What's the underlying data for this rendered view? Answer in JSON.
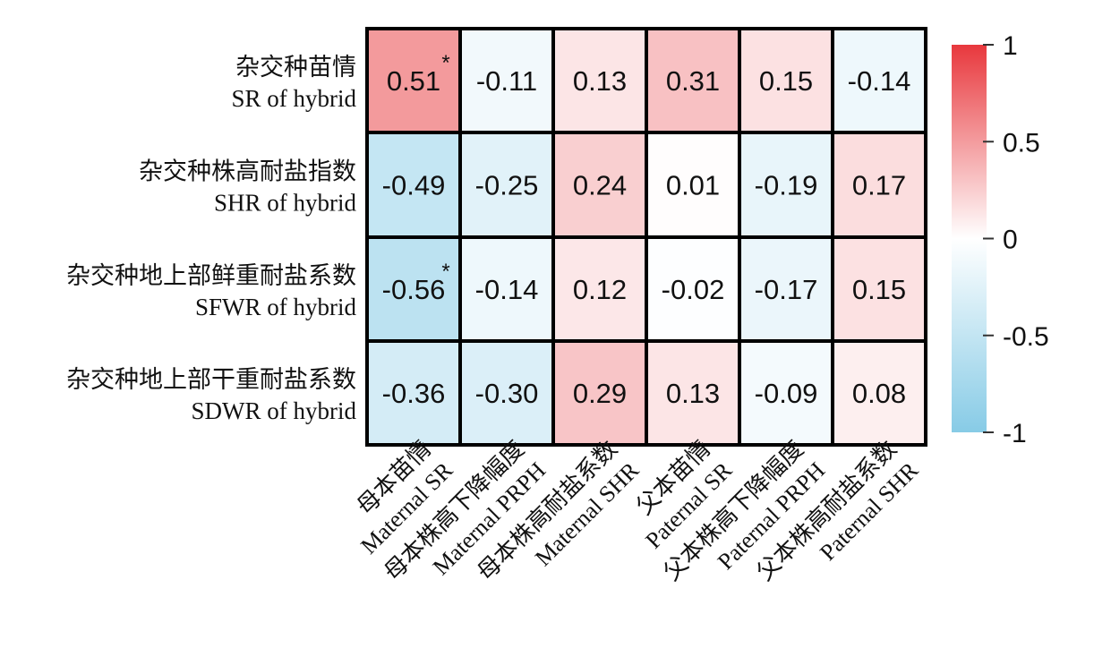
{
  "chart_data": {
    "type": "heatmap",
    "rows": [
      {
        "zh": "杂交种苗情",
        "en": "SR of hybrid"
      },
      {
        "zh": "杂交种株高耐盐指数",
        "en": "SHR of hybrid"
      },
      {
        "zh": "杂交种地上部鲜重耐盐系数",
        "en": "SFWR of hybrid"
      },
      {
        "zh": "杂交种地上部干重耐盐系数",
        "en": "SDWR of hybrid"
      }
    ],
    "columns": [
      {
        "zh": "母本苗情",
        "en": "Maternal SR"
      },
      {
        "zh": "母本株高下降幅度",
        "en": "Maternal PRPH"
      },
      {
        "zh": "母本株高耐盐系数",
        "en": "Maternal SHR"
      },
      {
        "zh": "父本苗情",
        "en": "Paternal SR"
      },
      {
        "zh": "父本株高下降幅度",
        "en": "Paternal PRPH"
      },
      {
        "zh": "父本株高耐盐系数",
        "en": "Paternal SHR"
      }
    ],
    "labels": [
      [
        "0.51",
        "-0.11",
        "0.13",
        "0.31",
        "0.15",
        "-0.14"
      ],
      [
        "-0.49",
        "-0.25",
        "0.24",
        "0.01",
        "-0.19",
        "0.17"
      ],
      [
        "-0.56",
        "-0.14",
        "0.12",
        "-0.02",
        "-0.17",
        "0.15"
      ],
      [
        "-0.36",
        "-0.30",
        "0.29",
        "0.13",
        "-0.09",
        "0.08"
      ]
    ],
    "values": [
      [
        0.51,
        -0.11,
        0.13,
        0.31,
        0.15,
        -0.14
      ],
      [
        -0.49,
        -0.25,
        0.24,
        0.01,
        -0.19,
        0.17
      ],
      [
        -0.56,
        -0.14,
        0.12,
        -0.02,
        -0.17,
        0.15
      ],
      [
        -0.36,
        -0.3,
        0.29,
        0.13,
        -0.09,
        0.08
      ]
    ],
    "significance": [
      [
        "*",
        "",
        "",
        "",
        "",
        ""
      ],
      [
        "",
        "",
        "",
        "",
        "",
        ""
      ],
      [
        "*",
        "",
        "",
        "",
        "",
        ""
      ],
      [
        "",
        "",
        "",
        "",
        "",
        ""
      ]
    ],
    "colorbar": {
      "range": [
        -1,
        1
      ],
      "ticks": [
        1,
        0.5,
        0,
        -0.5,
        -1
      ],
      "tick_labels": [
        "1",
        "0.5",
        "0",
        "-0.5",
        "-1"
      ],
      "colors": {
        "negative": "#87cbe6",
        "zero": "#ffffff",
        "positive": "#e8383d"
      }
    }
  }
}
